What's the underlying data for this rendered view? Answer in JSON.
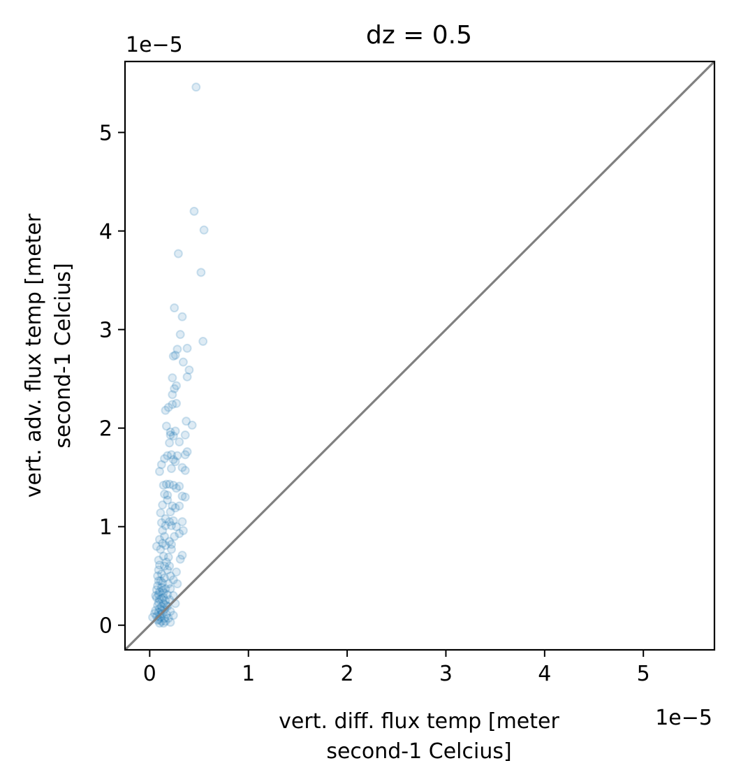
{
  "chart_data": {
    "type": "scatter",
    "title": "dz = 0.5",
    "xlabel_lines": [
      "vert. diff. flux temp [meter",
      "second-1 Celcius]"
    ],
    "ylabel_lines": [
      "vert. adv. flux temp [meter",
      "second-1 Celcius]"
    ],
    "x_offset_label": "1e−5",
    "y_offset_label": "1e−5",
    "scale": 1e-05,
    "xlim": [
      -0.25,
      5.72
    ],
    "ylim": [
      -0.25,
      5.72
    ],
    "xticks": [
      0,
      1,
      2,
      3,
      4,
      5
    ],
    "yticks": [
      0,
      1,
      2,
      3,
      4,
      5
    ],
    "xtick_labels": [
      "0",
      "1",
      "2",
      "3",
      "4",
      "5"
    ],
    "ytick_labels": [
      "0",
      "1",
      "2",
      "3",
      "4",
      "5"
    ],
    "grid": false,
    "legend": "none",
    "marker_color": "#1f77b4",
    "marker_alpha": 0.15,
    "reference_line": {
      "type": "identity",
      "color": "#808080"
    },
    "series": [
      {
        "points": [
          [
            0.47,
            5.46
          ],
          [
            0.45,
            4.2
          ],
          [
            0.55,
            4.01
          ],
          [
            0.29,
            3.77
          ],
          [
            0.52,
            3.58
          ],
          [
            0.25,
            3.22
          ],
          [
            0.33,
            3.13
          ],
          [
            0.31,
            2.95
          ],
          [
            0.54,
            2.88
          ],
          [
            0.28,
            2.8
          ],
          [
            0.38,
            2.81
          ],
          [
            0.26,
            2.74
          ],
          [
            0.24,
            2.73
          ],
          [
            0.34,
            2.67
          ],
          [
            0.4,
            2.59
          ],
          [
            0.38,
            2.52
          ],
          [
            0.23,
            2.51
          ],
          [
            0.27,
            2.43
          ],
          [
            0.25,
            2.4
          ],
          [
            0.23,
            2.34
          ],
          [
            0.27,
            2.25
          ],
          [
            0.23,
            2.24
          ],
          [
            0.19,
            2.21
          ],
          [
            0.16,
            2.18
          ],
          [
            0.37,
            2.07
          ],
          [
            0.43,
            2.03
          ],
          [
            0.17,
            2.02
          ],
          [
            0.21,
            1.96
          ],
          [
            0.26,
            1.97
          ],
          [
            0.21,
            1.93
          ],
          [
            0.24,
            1.92
          ],
          [
            0.36,
            1.93
          ],
          [
            0.2,
            1.85
          ],
          [
            0.3,
            1.86
          ],
          [
            0.38,
            1.76
          ],
          [
            0.36,
            1.73
          ],
          [
            0.18,
            1.72
          ],
          [
            0.22,
            1.73
          ],
          [
            0.28,
            1.72
          ],
          [
            0.15,
            1.69
          ],
          [
            0.24,
            1.68
          ],
          [
            0.26,
            1.66
          ],
          [
            0.12,
            1.63
          ],
          [
            0.33,
            1.6
          ],
          [
            0.22,
            1.59
          ],
          [
            0.36,
            1.57
          ],
          [
            0.1,
            1.56
          ],
          [
            0.17,
            1.43
          ],
          [
            0.14,
            1.42
          ],
          [
            0.2,
            1.43
          ],
          [
            0.24,
            1.42
          ],
          [
            0.3,
            1.41
          ],
          [
            0.27,
            1.39
          ],
          [
            0.15,
            1.33
          ],
          [
            0.18,
            1.32
          ],
          [
            0.33,
            1.31
          ],
          [
            0.36,
            1.3
          ],
          [
            0.18,
            1.27
          ],
          [
            0.13,
            1.22
          ],
          [
            0.23,
            1.21
          ],
          [
            0.3,
            1.21
          ],
          [
            0.26,
            1.19
          ],
          [
            0.21,
            1.15
          ],
          [
            0.11,
            1.14
          ],
          [
            0.16,
            1.08
          ],
          [
            0.12,
            1.04
          ],
          [
            0.2,
            1.05
          ],
          [
            0.24,
            1.06
          ],
          [
            0.33,
            1.05
          ],
          [
            0.16,
            1.01
          ],
          [
            0.22,
            1.01
          ],
          [
            0.27,
            1.0
          ],
          [
            0.34,
            0.96
          ],
          [
            0.13,
            0.96
          ],
          [
            0.3,
            0.93
          ],
          [
            0.15,
            0.9
          ],
          [
            0.25,
            0.9
          ],
          [
            0.1,
            0.87
          ],
          [
            0.13,
            0.83
          ],
          [
            0.2,
            0.85
          ],
          [
            0.22,
            0.82
          ],
          [
            0.16,
            0.81
          ],
          [
            0.07,
            0.8
          ],
          [
            0.11,
            0.77
          ],
          [
            0.22,
            0.77
          ],
          [
            0.33,
            0.71
          ],
          [
            0.14,
            0.7
          ],
          [
            0.19,
            0.69
          ],
          [
            0.31,
            0.67
          ],
          [
            0.09,
            0.66
          ],
          [
            0.17,
            0.64
          ],
          [
            0.1,
            0.61
          ],
          [
            0.15,
            0.6
          ],
          [
            0.2,
            0.6
          ],
          [
            0.09,
            0.56
          ],
          [
            0.18,
            0.56
          ],
          [
            0.27,
            0.54
          ],
          [
            0.12,
            0.52
          ],
          [
            0.21,
            0.5
          ],
          [
            0.15,
            0.48
          ],
          [
            0.24,
            0.46
          ],
          [
            0.09,
            0.45
          ],
          [
            0.13,
            0.43
          ],
          [
            0.19,
            0.42
          ],
          [
            0.28,
            0.42
          ],
          [
            0.08,
            0.4
          ],
          [
            0.12,
            0.38
          ],
          [
            0.16,
            0.37
          ],
          [
            0.21,
            0.37
          ],
          [
            0.1,
            0.34
          ],
          [
            0.14,
            0.33
          ],
          [
            0.09,
            0.31
          ],
          [
            0.18,
            0.31
          ],
          [
            0.24,
            0.3
          ],
          [
            0.07,
            0.28
          ],
          [
            0.12,
            0.27
          ],
          [
            0.16,
            0.25
          ],
          [
            0.2,
            0.26
          ],
          [
            0.09,
            0.23
          ],
          [
            0.14,
            0.22
          ],
          [
            0.26,
            0.22
          ],
          [
            0.08,
            0.2
          ],
          [
            0.12,
            0.19
          ],
          [
            0.18,
            0.19
          ],
          [
            0.1,
            0.17
          ],
          [
            0.15,
            0.16
          ],
          [
            0.06,
            0.15
          ],
          [
            0.21,
            0.14
          ],
          [
            0.09,
            0.13
          ],
          [
            0.13,
            0.12
          ],
          [
            0.17,
            0.11
          ],
          [
            0.24,
            0.1
          ],
          [
            0.07,
            0.09
          ],
          [
            0.11,
            0.08
          ],
          [
            0.15,
            0.07
          ],
          [
            0.19,
            0.07
          ],
          [
            0.08,
            0.05
          ],
          [
            0.12,
            0.04
          ],
          [
            0.16,
            0.04
          ],
          [
            0.21,
            0.03
          ],
          [
            0.1,
            0.02
          ],
          [
            0.14,
            0.02
          ],
          [
            0.03,
            0.08
          ],
          [
            0.05,
            0.12
          ],
          [
            0.06,
            0.3
          ],
          [
            0.07,
            0.36
          ],
          [
            0.08,
            0.5
          ],
          [
            0.11,
            0.45
          ],
          [
            0.13,
            0.35
          ],
          [
            0.1,
            0.26
          ],
          [
            0.14,
            0.28
          ],
          [
            0.17,
            0.2
          ],
          [
            0.11,
            0.11
          ],
          [
            0.09,
            0.06
          ],
          [
            0.12,
            0.15
          ]
        ]
      }
    ]
  }
}
